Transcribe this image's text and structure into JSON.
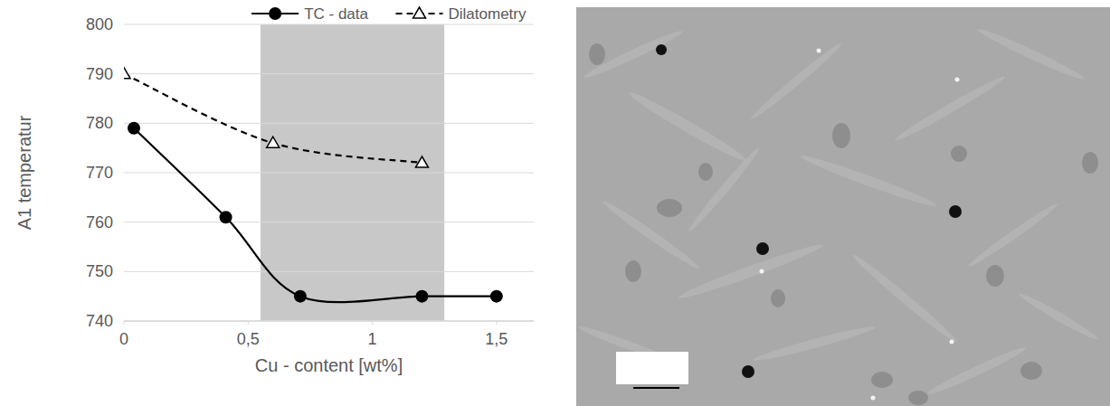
{
  "chart_data": {
    "type": "line",
    "x_label": "Cu - content [wt%]",
    "y_label": "A1 temperatur",
    "xlim": [
      0,
      1.65
    ],
    "xticks": [
      0,
      {
        "value": 0.5,
        "label": "0,5"
      },
      1,
      {
        "value": 1.5,
        "label": "1,5"
      }
    ],
    "ylim": [
      740,
      800
    ],
    "yticks": [
      740,
      750,
      760,
      770,
      780,
      790,
      800
    ],
    "grid": true,
    "legend": "top-right",
    "highlight": [
      0.55,
      1.29
    ],
    "series": [
      {
        "name": "TC - data",
        "color": "#000000",
        "marker": "circle",
        "line_style": "solid",
        "x": [
          0.04,
          0.41,
          0.71,
          1.2,
          1.5
        ],
        "values": [
          779,
          761,
          745,
          745,
          745
        ]
      },
      {
        "name": "Dilatometry",
        "color": "#000000",
        "marker": "triangle",
        "line_style": "dashed",
        "x": [
          0,
          0.6,
          1.2
        ],
        "values": [
          790,
          776,
          772
        ]
      }
    ]
  }
}
